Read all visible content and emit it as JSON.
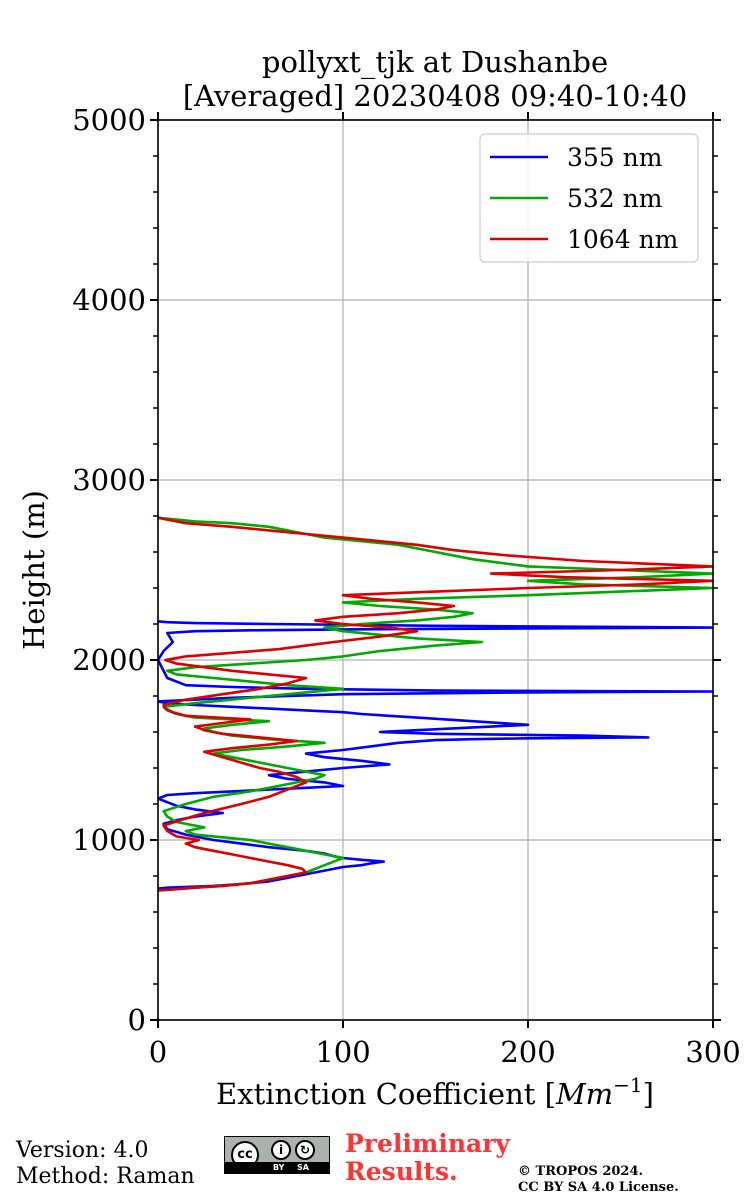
{
  "chart_data": {
    "type": "line",
    "title_line1": "pollyxt_tjk at Dushanbe",
    "title_line2": "[Averaged] 20230408 09:40-10:40",
    "xlabel": "Extinction Coefficient [",
    "xlabel_unit": "Mm",
    "xlabel_exp": "−1",
    "xlabel_end": "]",
    "ylabel": "Height (m)",
    "xlim": [
      0,
      300
    ],
    "ylim": [
      0,
      5000
    ],
    "xticks": [
      0,
      100,
      200,
      300
    ],
    "yticks": [
      0,
      1000,
      2000,
      3000,
      4000,
      5000
    ],
    "grid": true,
    "legend_position": "top-right",
    "series": [
      {
        "name": "355 nm",
        "color": "#0000ff",
        "x": [
          0,
          5,
          30,
          45,
          60,
          70,
          80,
          90,
          100,
          110,
          115,
          122,
          110,
          100,
          95,
          90,
          80,
          60,
          45,
          30,
          15,
          5,
          3,
          10,
          20,
          35,
          20,
          10,
          5,
          0,
          5,
          20,
          40,
          60,
          80,
          100,
          90,
          70,
          60,
          80,
          100,
          125,
          110,
          90,
          80,
          100,
          115,
          130,
          150,
          170,
          200,
          265,
          230,
          150,
          120,
          200,
          170,
          140,
          110,
          100,
          80,
          60,
          40,
          20,
          5,
          0,
          40,
          100,
          200,
          300,
          150,
          80,
          40,
          15,
          5,
          0,
          3,
          8,
          5,
          20,
          50,
          100,
          200,
          300,
          150,
          60,
          20,
          5,
          0
        ],
        "y": [
          730,
          735,
          745,
          755,
          770,
          790,
          810,
          830,
          850,
          860,
          870,
          880,
          890,
          900,
          910,
          925,
          940,
          960,
          980,
          1000,
          1030,
          1060,
          1090,
          1110,
          1130,
          1150,
          1170,
          1190,
          1210,
          1230,
          1250,
          1260,
          1270,
          1280,
          1290,
          1300,
          1320,
          1340,
          1360,
          1380,
          1400,
          1420,
          1440,
          1460,
          1480,
          1500,
          1520,
          1540,
          1555,
          1560,
          1565,
          1570,
          1580,
          1590,
          1600,
          1640,
          1660,
          1680,
          1700,
          1710,
          1720,
          1730,
          1740,
          1750,
          1760,
          1770,
          1790,
          1810,
          1820,
          1825,
          1830,
          1840,
          1850,
          1860,
          1900,
          2000,
          2050,
          2100,
          2150,
          2160,
          2165,
          2170,
          2175,
          2180,
          2190,
          2200,
          2205,
          2210,
          2215
        ]
      },
      {
        "name": "532 nm",
        "color": "#00aa00",
        "x": [
          0,
          8,
          20,
          35,
          50,
          60,
          70,
          80,
          85,
          90,
          95,
          100,
          90,
          80,
          70,
          60,
          50,
          40,
          30,
          20,
          15,
          25,
          10,
          5,
          3,
          15,
          30,
          50,
          65,
          75,
          85,
          90,
          80,
          70,
          60,
          50,
          40,
          30,
          45,
          70,
          90,
          60,
          40,
          30,
          25,
          40,
          60,
          20,
          10,
          5,
          3,
          20,
          40,
          60,
          80,
          100,
          70,
          50,
          30,
          10,
          5,
          20,
          50,
          80,
          100,
          120,
          150,
          175,
          140,
          120,
          100,
          90,
          110,
          140,
          160,
          170,
          150,
          120,
          100,
          140,
          200,
          250,
          300,
          230,
          200,
          260,
          300,
          250,
          200,
          170,
          150,
          130,
          110,
          90,
          80,
          70,
          60,
          40,
          20,
          10,
          0
        ],
        "y": [
          720,
          725,
          735,
          745,
          760,
          780,
          800,
          820,
          840,
          860,
          880,
          900,
          920,
          940,
          960,
          980,
          1000,
          1010,
          1020,
          1030,
          1050,
          1070,
          1100,
          1130,
          1160,
          1200,
          1240,
          1270,
          1300,
          1320,
          1340,
          1360,
          1380,
          1400,
          1420,
          1440,
          1460,
          1480,
          1500,
          1520,
          1540,
          1560,
          1580,
          1600,
          1620,
          1640,
          1660,
          1680,
          1700,
          1720,
          1740,
          1760,
          1780,
          1800,
          1820,
          1840,
          1860,
          1880,
          1900,
          1920,
          1940,
          1960,
          1980,
          2000,
          2020,
          2050,
          2080,
          2100,
          2120,
          2140,
          2160,
          2180,
          2200,
          2220,
          2240,
          2260,
          2280,
          2300,
          2320,
          2340,
          2360,
          2380,
          2400,
          2420,
          2440,
          2460,
          2480,
          2500,
          2520,
          2560,
          2600,
          2640,
          2660,
          2680,
          2700,
          2720,
          2740,
          2760,
          2770,
          2780,
          2790
        ]
      },
      {
        "name": "1064 nm",
        "color": "#dd0000",
        "x": [
          0,
          8,
          20,
          35,
          50,
          60,
          70,
          80,
          78,
          70,
          60,
          50,
          40,
          30,
          20,
          15,
          22,
          10,
          5,
          3,
          12,
          25,
          45,
          60,
          70,
          80,
          75,
          65,
          55,
          45,
          35,
          25,
          40,
          60,
          75,
          55,
          35,
          25,
          20,
          35,
          50,
          15,
          8,
          4,
          3,
          15,
          35,
          55,
          70,
          80,
          60,
          40,
          25,
          10,
          4,
          15,
          40,
          65,
          80,
          95,
          120,
          140,
          125,
          100,
          85,
          100,
          130,
          150,
          160,
          140,
          115,
          100,
          150,
          200,
          260,
          300,
          220,
          180,
          250,
          300,
          230,
          190,
          160,
          140,
          120,
          100,
          80,
          60,
          40,
          15,
          5,
          0
        ],
        "y": [
          720,
          725,
          735,
          745,
          760,
          780,
          800,
          820,
          840,
          860,
          880,
          900,
          920,
          940,
          960,
          980,
          1000,
          1020,
          1050,
          1080,
          1110,
          1150,
          1200,
          1240,
          1280,
          1320,
          1350,
          1380,
          1400,
          1430,
          1460,
          1490,
          1510,
          1530,
          1550,
          1570,
          1590,
          1610,
          1630,
          1650,
          1670,
          1690,
          1710,
          1730,
          1750,
          1780,
          1810,
          1840,
          1870,
          1900,
          1920,
          1940,
          1960,
          1980,
          2000,
          2020,
          2040,
          2060,
          2080,
          2100,
          2130,
          2160,
          2180,
          2200,
          2220,
          2240,
          2260,
          2280,
          2300,
          2320,
          2340,
          2360,
          2380,
          2400,
          2420,
          2440,
          2460,
          2480,
          2500,
          2520,
          2550,
          2580,
          2610,
          2640,
          2660,
          2680,
          2700,
          2720,
          2740,
          2760,
          2780,
          2790
        ]
      }
    ]
  },
  "footer": {
    "version": "Version: 4.0",
    "method": "Method: Raman",
    "badge_by": "BY",
    "badge_sa": "SA",
    "badge_cc": "cc",
    "badge_person": "i",
    "badge_share": "↻",
    "preliminary_line1": "Preliminary",
    "preliminary_line2": "Results.",
    "copyright_line1": "© TROPOS 2024.",
    "copyright_line2": "CC BY SA 4.0 License."
  }
}
